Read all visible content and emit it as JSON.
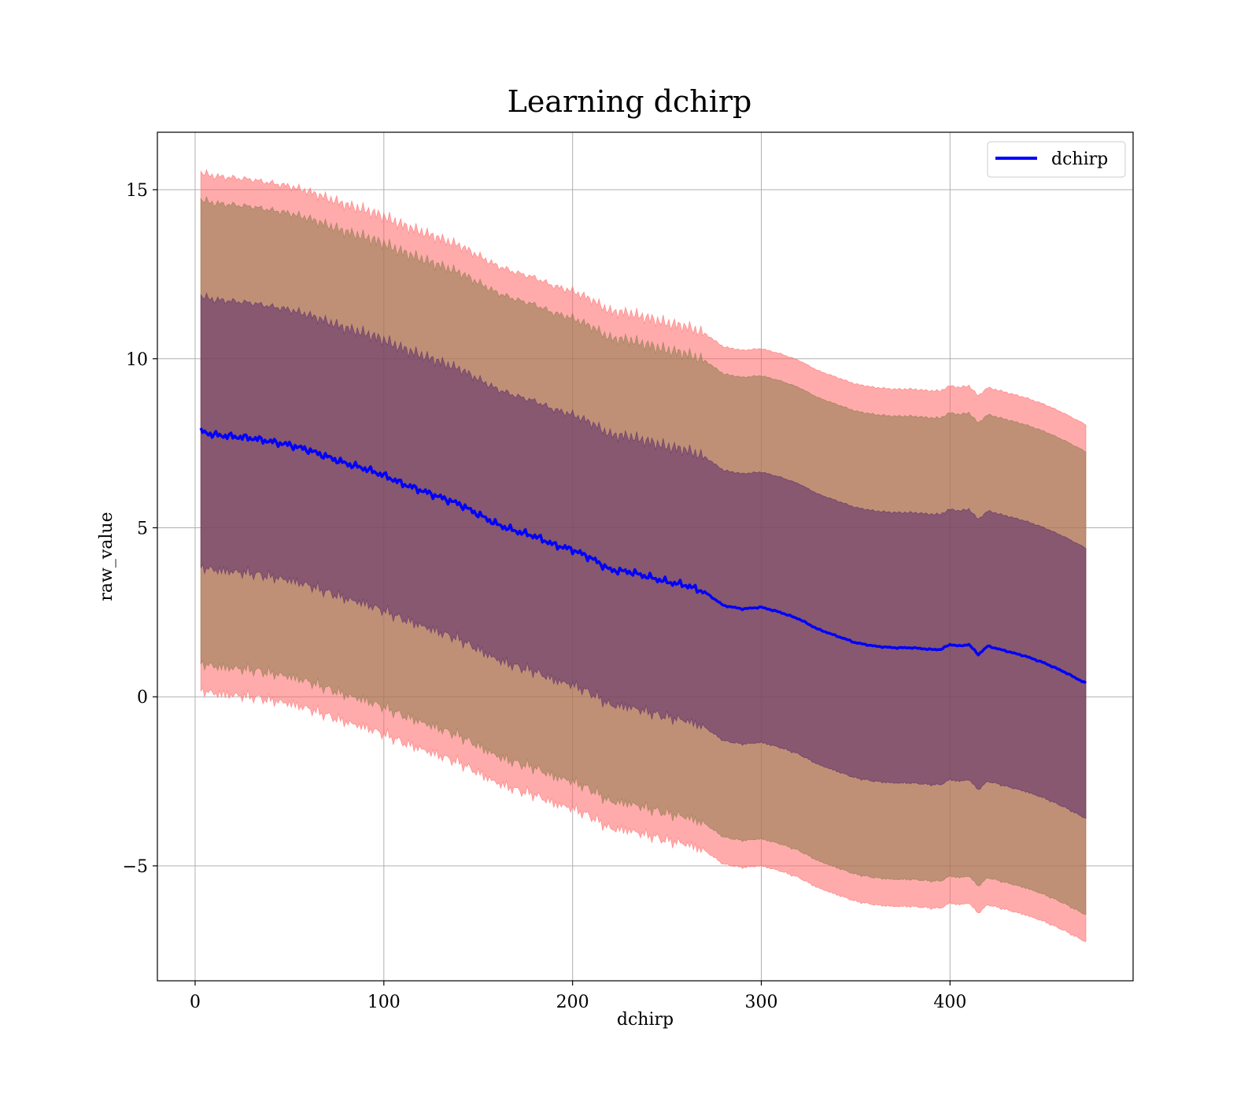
{
  "chart_data": {
    "type": "area",
    "title": "Learning dchirp",
    "xlabel": "dchirp",
    "ylabel": "raw_value",
    "xlim": [
      -20,
      497
    ],
    "ylim": [
      -8.4,
      16.7
    ],
    "x_ticks": [
      0,
      100,
      200,
      300,
      400
    ],
    "x_tick_labels": [
      "0",
      "100",
      "200",
      "300",
      "400"
    ],
    "y_ticks": [
      -5,
      0,
      5,
      10,
      15
    ],
    "y_tick_labels": [
      "−5",
      "0",
      "5",
      "10",
      "15"
    ],
    "grid": true,
    "legend": {
      "position": "top-right",
      "entries": [
        "dchirp"
      ]
    },
    "colors": {
      "line": "#0000ff",
      "band_outer": "#ff6666",
      "band_middle": "#8a7a4a",
      "band_inner": "#5a2a6a"
    },
    "series": [
      {
        "name": "dchirp",
        "x": [
          3,
          10,
          20,
          30,
          40,
          50,
          60,
          70,
          80,
          90,
          100,
          110,
          120,
          130,
          140,
          150,
          160,
          170,
          180,
          190,
          200,
          210,
          220,
          230,
          240,
          250,
          260,
          270,
          280,
          290,
          300,
          310,
          320,
          330,
          340,
          350,
          360,
          370,
          380,
          390,
          395,
          400,
          405,
          410,
          415,
          420,
          430,
          440,
          450,
          460,
          472
        ],
        "mean": [
          7.85,
          7.75,
          7.7,
          7.65,
          7.55,
          7.45,
          7.3,
          7.1,
          6.9,
          6.75,
          6.55,
          6.3,
          6.1,
          5.9,
          5.7,
          5.4,
          5.1,
          4.9,
          4.75,
          4.5,
          4.35,
          4.1,
          3.75,
          3.7,
          3.55,
          3.4,
          3.3,
          3.1,
          2.7,
          2.6,
          2.65,
          2.5,
          2.3,
          2.0,
          1.8,
          1.6,
          1.5,
          1.45,
          1.45,
          1.4,
          1.4,
          1.55,
          1.5,
          1.55,
          1.25,
          1.5,
          1.35,
          1.2,
          1.0,
          0.75,
          0.4
        ]
      }
    ],
    "bands": [
      {
        "name": "outer",
        "half_width": 7.65
      },
      {
        "name": "middle",
        "half_width": 6.85
      },
      {
        "name": "inner",
        "half_width": 4.0
      }
    ]
  }
}
